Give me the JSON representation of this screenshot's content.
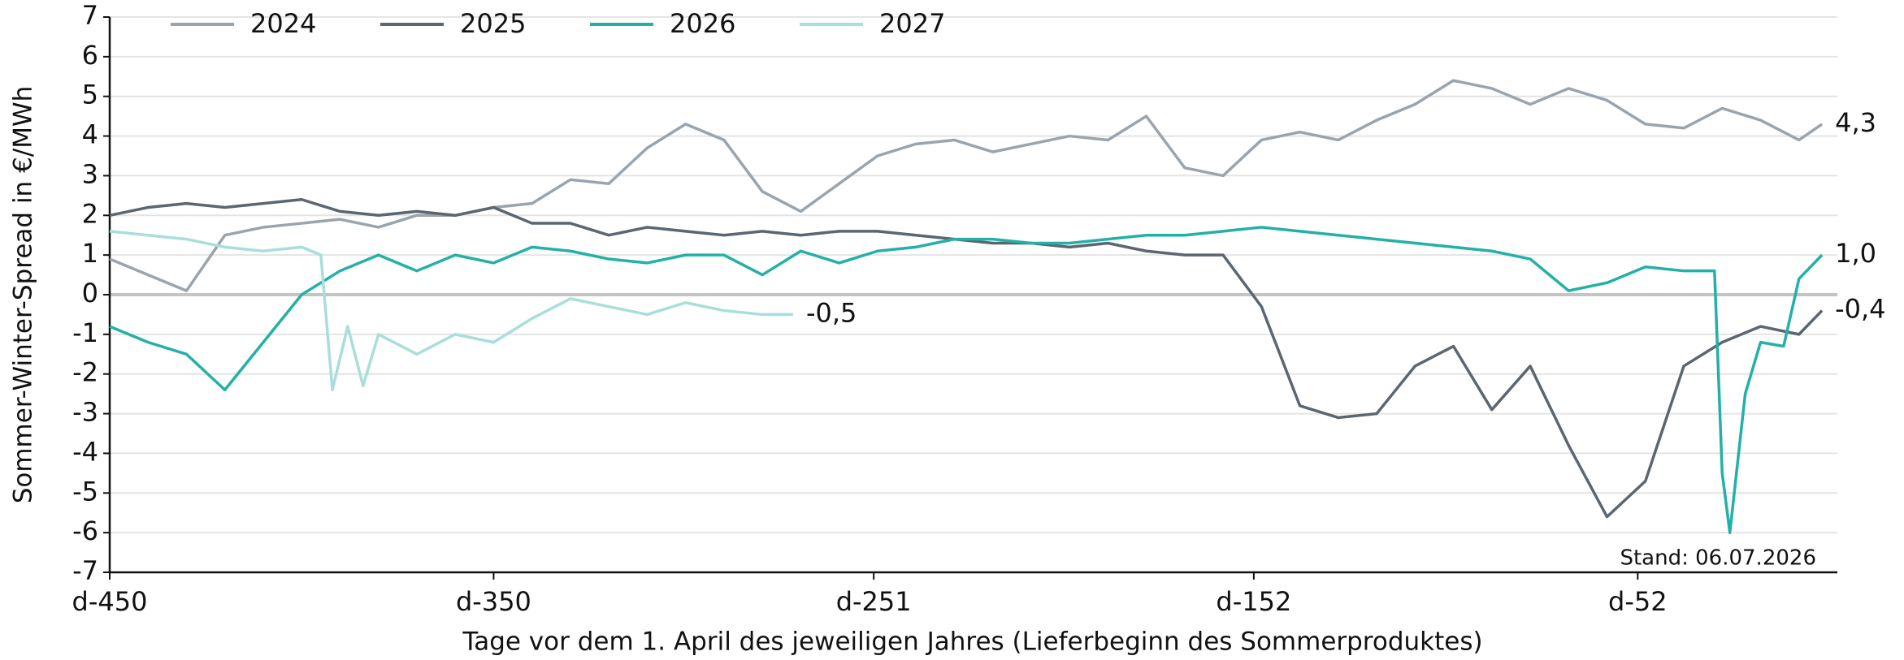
{
  "chart_data": {
    "type": "line",
    "x_label": "Tage vor dem 1. April des jeweiligen Jahres (Lieferbeginn des Sommerproduktes)",
    "y_label": "Sommer-Winter-Spread in €/MWh",
    "annotation": "Stand: 06.07.2026",
    "legend": "top-left",
    "grid": true,
    "xlim": [
      -450,
      0
    ],
    "xticks": [
      {
        "value": -450,
        "label": "d-450"
      },
      {
        "value": -350,
        "label": "d-350"
      },
      {
        "value": -251,
        "label": "d-251"
      },
      {
        "value": -152,
        "label": "d-152"
      },
      {
        "value": -52,
        "label": "d-52"
      }
    ],
    "ylim": [
      -7,
      7
    ],
    "yticks": [
      -7,
      -6,
      -5,
      -4,
      -3,
      -2,
      -1,
      0,
      1,
      2,
      3,
      4,
      5,
      6,
      7
    ],
    "series": [
      {
        "name": "2024",
        "color": "#9aa4ad",
        "last_label": "4,3",
        "x": [
          -450,
          -440,
          -430,
          -420,
          -410,
          -400,
          -390,
          -380,
          -370,
          -360,
          -350,
          -340,
          -330,
          -320,
          -310,
          -300,
          -290,
          -280,
          -270,
          -260,
          -250,
          -240,
          -230,
          -220,
          -210,
          -200,
          -190,
          -180,
          -170,
          -160,
          -150,
          -140,
          -130,
          -120,
          -110,
          -100,
          -90,
          -80,
          -70,
          -60,
          -50,
          -40,
          -30,
          -20,
          -10,
          -4
        ],
        "values": [
          0.9,
          0.5,
          0.1,
          1.5,
          1.7,
          1.8,
          1.9,
          1.7,
          2.0,
          2.0,
          2.2,
          2.3,
          2.9,
          2.8,
          3.7,
          4.3,
          3.9,
          2.6,
          2.1,
          2.8,
          3.5,
          3.8,
          3.9,
          3.6,
          3.8,
          4.0,
          3.9,
          4.5,
          3.2,
          3.0,
          3.9,
          4.1,
          3.9,
          4.4,
          4.8,
          5.4,
          5.2,
          4.8,
          5.2,
          4.9,
          4.3,
          4.2,
          4.7,
          4.4,
          3.9,
          4.3
        ]
      },
      {
        "name": "2025",
        "color": "#5b6670",
        "last_label": "-0,4",
        "x": [
          -450,
          -440,
          -430,
          -420,
          -410,
          -400,
          -390,
          -380,
          -370,
          -360,
          -350,
          -340,
          -330,
          -320,
          -310,
          -300,
          -290,
          -280,
          -270,
          -260,
          -250,
          -240,
          -230,
          -220,
          -210,
          -200,
          -190,
          -180,
          -170,
          -160,
          -150,
          -140,
          -130,
          -120,
          -110,
          -100,
          -90,
          -80,
          -70,
          -60,
          -50,
          -40,
          -30,
          -20,
          -10,
          -4
        ],
        "values": [
          2.0,
          2.2,
          2.3,
          2.2,
          2.3,
          2.4,
          2.1,
          2.0,
          2.1,
          2.0,
          2.2,
          1.8,
          1.8,
          1.5,
          1.7,
          1.6,
          1.5,
          1.6,
          1.5,
          1.6,
          1.6,
          1.5,
          1.4,
          1.3,
          1.3,
          1.2,
          1.3,
          1.1,
          1.0,
          1.0,
          -0.3,
          -2.8,
          -3.1,
          -3.0,
          -1.8,
          -1.3,
          -2.9,
          -1.8,
          -3.8,
          -5.6,
          -4.7,
          -1.8,
          -1.2,
          -0.8,
          -1.0,
          -0.4
        ]
      },
      {
        "name": "2026",
        "color": "#23b1a7",
        "last_label": "1,0",
        "x": [
          -450,
          -440,
          -430,
          -420,
          -410,
          -400,
          -390,
          -380,
          -370,
          -360,
          -350,
          -340,
          -330,
          -320,
          -310,
          -300,
          -290,
          -280,
          -270,
          -260,
          -250,
          -240,
          -230,
          -220,
          -210,
          -200,
          -190,
          -180,
          -170,
          -160,
          -150,
          -140,
          -130,
          -120,
          -110,
          -100,
          -90,
          -80,
          -70,
          -60,
          -50,
          -40,
          -32,
          -30,
          -28,
          -24,
          -20,
          -14,
          -10,
          -4
        ],
        "values": [
          -0.8,
          -1.2,
          -1.5,
          -2.4,
          -1.2,
          0.0,
          0.6,
          1.0,
          0.6,
          1.0,
          0.8,
          1.2,
          1.1,
          0.9,
          0.8,
          1.0,
          1.0,
          0.5,
          1.1,
          0.8,
          1.1,
          1.2,
          1.4,
          1.4,
          1.3,
          1.3,
          1.4,
          1.5,
          1.5,
          1.6,
          1.7,
          1.6,
          1.5,
          1.4,
          1.3,
          1.2,
          1.1,
          0.9,
          0.1,
          0.3,
          0.7,
          0.6,
          0.6,
          -4.5,
          -6.0,
          -2.5,
          -1.2,
          -1.3,
          0.4,
          1.0
        ]
      },
      {
        "name": "2027",
        "color": "#a9deda",
        "last_label": "-0,5",
        "x": [
          -450,
          -440,
          -430,
          -420,
          -410,
          -400,
          -395,
          -392,
          -388,
          -384,
          -380,
          -370,
          -360,
          -350,
          -340,
          -330,
          -320,
          -310,
          -300,
          -290,
          -280,
          -272
        ],
        "values": [
          1.6,
          1.5,
          1.4,
          1.2,
          1.1,
          1.2,
          1.0,
          -2.4,
          -0.8,
          -2.3,
          -1.0,
          -1.5,
          -1.0,
          -1.2,
          -0.6,
          -0.1,
          -0.3,
          -0.5,
          -0.2,
          -0.4,
          -0.5,
          -0.5
        ]
      }
    ]
  }
}
